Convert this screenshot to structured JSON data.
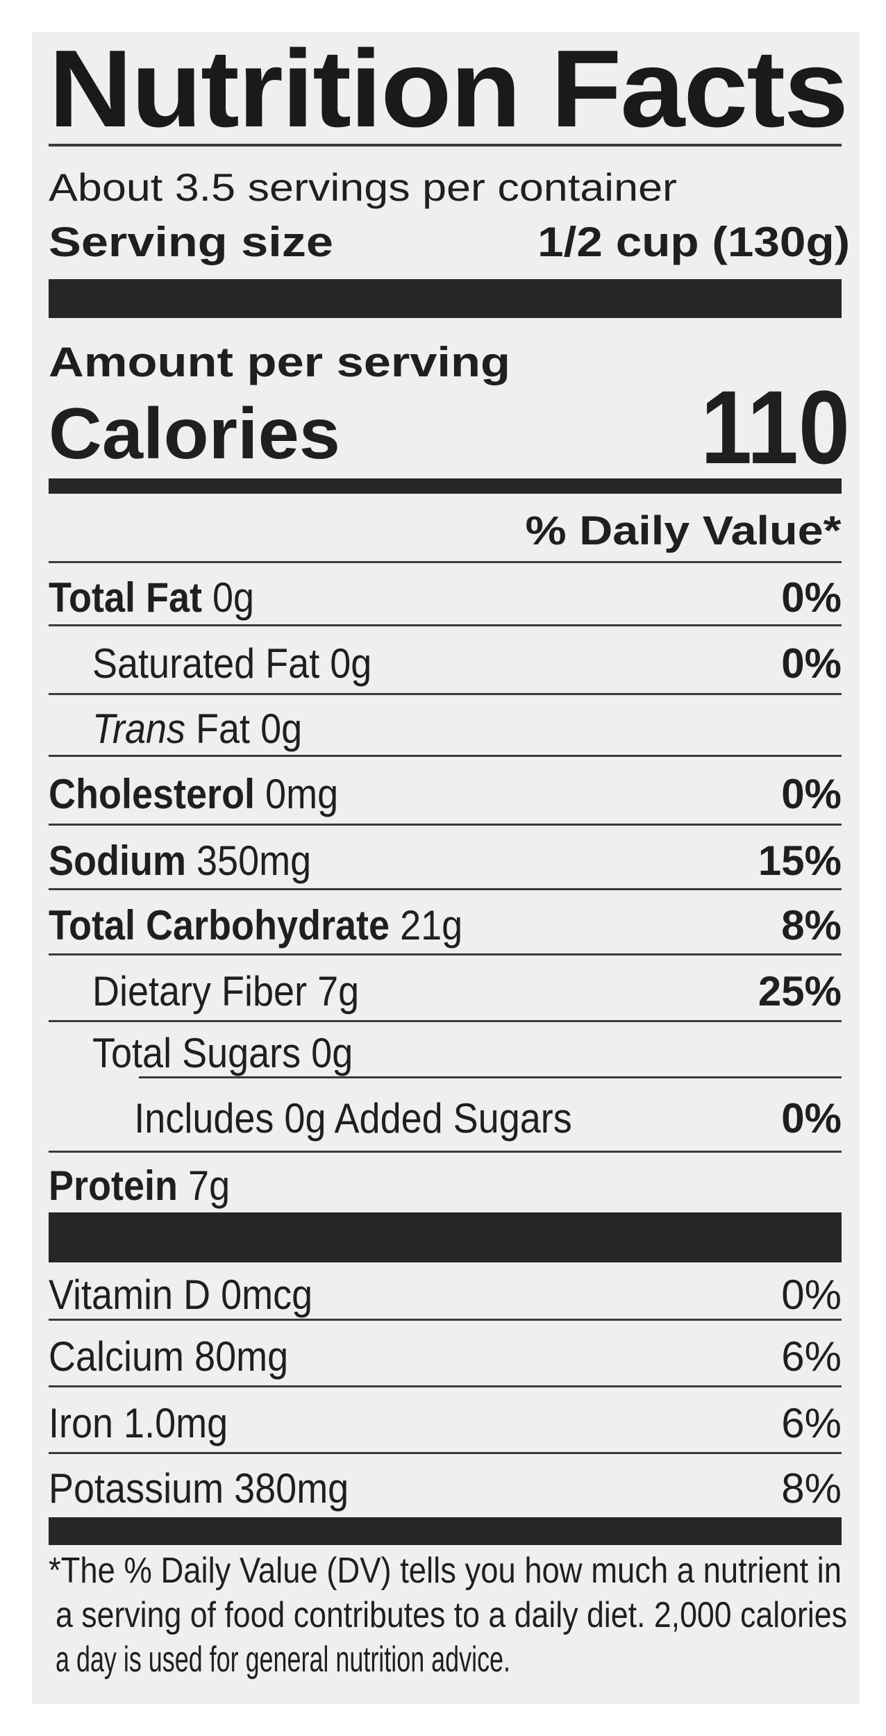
{
  "label": {
    "title": "Nutrition Facts",
    "servings_per_container": "About 3.5 servings per container",
    "serving_size_label": "Serving size",
    "serving_size_value": "1/2 cup (130g)",
    "amount_per_serving": "Amount per serving",
    "calories_label": "Calories",
    "calories_value": "110",
    "daily_value_header": "% Daily Value*",
    "nutrients": [
      {
        "name": "Total Fat",
        "amount": "0g",
        "dv": "0%",
        "bold": true,
        "indent": 0
      },
      {
        "name": "Saturated Fat",
        "amount": "0g",
        "dv": "0%",
        "bold": false,
        "indent": 1
      },
      {
        "name_italic": "Trans",
        "name": "Fat",
        "amount": "0g",
        "dv": "",
        "bold": false,
        "indent": 1
      },
      {
        "name": "Cholesterol",
        "amount": "0mg",
        "dv": "0%",
        "bold": true,
        "indent": 0
      },
      {
        "name": "Sodium",
        "amount": "350mg",
        "dv": "15%",
        "bold": true,
        "indent": 0
      },
      {
        "name": "Total Carbohydrate",
        "amount": "21g",
        "dv": "8%",
        "bold": true,
        "indent": 0
      },
      {
        "name": "Dietary Fiber",
        "amount": "7g",
        "dv": "25%",
        "bold": false,
        "indent": 1
      },
      {
        "name": "Total Sugars",
        "amount": "0g",
        "dv": "",
        "bold": false,
        "indent": 1
      },
      {
        "name": "Includes 0g Added Sugars",
        "amount": "",
        "dv": "0%",
        "bold": false,
        "indent": 2
      },
      {
        "name": "Protein",
        "amount": "7g",
        "dv": "",
        "bold": true,
        "indent": 0
      }
    ],
    "vitamins": [
      {
        "name": "Vitamin D",
        "amount": "0mcg",
        "dv": "0%"
      },
      {
        "name": "Calcium",
        "amount": "80mg",
        "dv": "6%"
      },
      {
        "name": "Iron",
        "amount": "1.0mg",
        "dv": "6%"
      },
      {
        "name": "Potassium",
        "amount": "380mg",
        "dv": "8%"
      }
    ],
    "footnote_lines": [
      "*The % Daily Value (DV) tells you how much a nutrient in",
      "a serving of food contributes to a daily diet. 2,000 calories",
      "a day is used for general nutrition advice."
    ]
  }
}
